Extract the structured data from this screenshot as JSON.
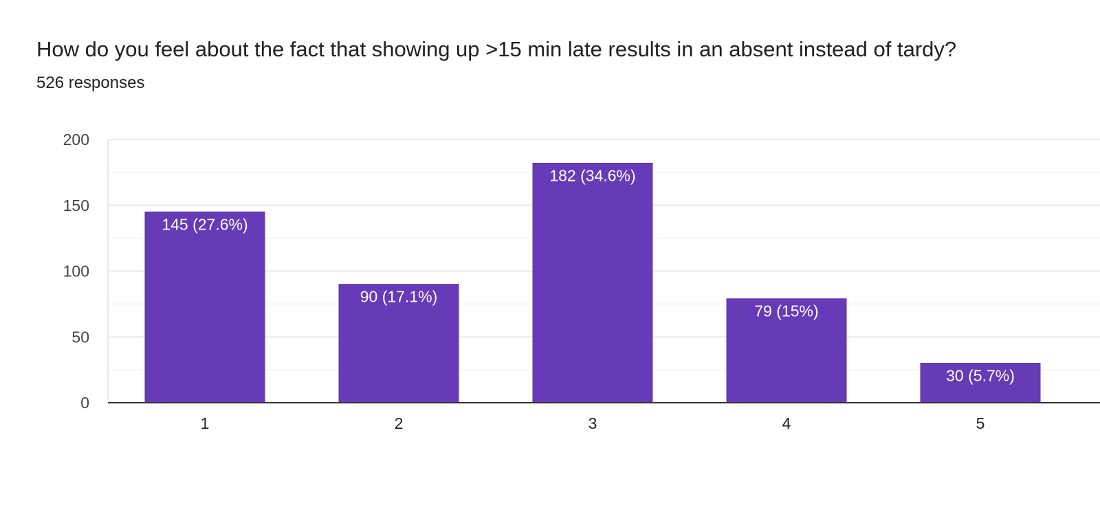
{
  "question": {
    "title": "How do you feel about the fact that showing up >15 min late results in an absent instead of tardy?",
    "responses": "526 responses"
  },
  "colors": {
    "bar": "#673ab7",
    "bar_stroke": "#5e35b1",
    "grid_major": "#e8e8e8",
    "grid_minor": "#f3f3f3",
    "axis": "#333333"
  },
  "chart_data": {
    "type": "bar",
    "categories": [
      "1",
      "2",
      "3",
      "4",
      "5"
    ],
    "values": [
      145,
      90,
      182,
      79,
      30
    ],
    "data_labels": [
      "145 (27.6%)",
      "90 (17.1%)",
      "182 (34.6%)",
      "79 (15%)",
      "30 (5.7%)"
    ],
    "y_ticks": [
      0,
      50,
      100,
      150,
      200
    ],
    "ylim": [
      0,
      200
    ],
    "title": "How do you feel about the fact that showing up >15 min late results in an absent instead of tardy?",
    "xlabel": "",
    "ylabel": "",
    "grid": true
  }
}
